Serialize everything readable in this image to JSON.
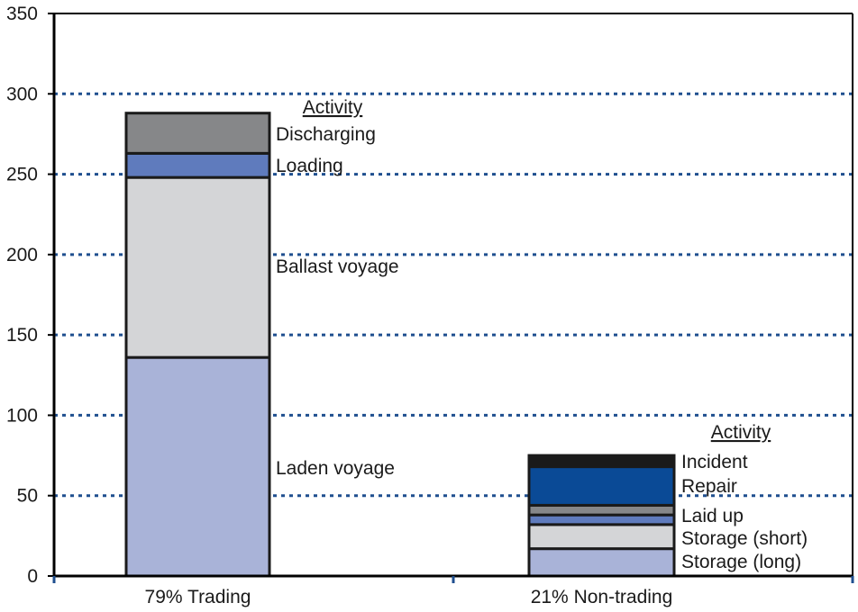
{
  "chart_data": {
    "type": "bar",
    "stacked": true,
    "ylim": [
      0,
      350
    ],
    "yticks": [
      0,
      50,
      100,
      150,
      200,
      250,
      300,
      350
    ],
    "grid": "horizontal dotted",
    "colors": {
      "axis": "#000000",
      "grid": "#1f4f8f",
      "bar_stroke": "#1a1a1a"
    },
    "categories": [
      "79% Trading",
      "21% Non-trading"
    ],
    "bars": [
      {
        "category": "79% Trading",
        "legend_title": "Activity",
        "segments": [
          {
            "label": "Laden voyage",
            "value": 136,
            "color": "#a9b3d8"
          },
          {
            "label": "Ballast voyage",
            "value": 112,
            "color": "#d4d5d7"
          },
          {
            "label": "Loading",
            "value": 15,
            "color": "#5f7bbd"
          },
          {
            "label": "Discharging",
            "value": 25,
            "color": "#868789"
          }
        ]
      },
      {
        "category": "21% Non-trading",
        "legend_title": "Activity",
        "segments": [
          {
            "label": "Storage (long)",
            "value": 17,
            "color": "#a9b3d8"
          },
          {
            "label": "Storage (short)",
            "value": 15,
            "color": "#d4d5d7"
          },
          {
            "label": "Laid up",
            "value": 6,
            "color": "#5f7bbd"
          },
          {
            "label": "",
            "value": 6,
            "color": "#868789"
          },
          {
            "label": "Repair",
            "value": 24,
            "color": "#0a4a96"
          },
          {
            "label": "Incident",
            "value": 7,
            "color": "#1a1a1a"
          }
        ]
      }
    ]
  }
}
